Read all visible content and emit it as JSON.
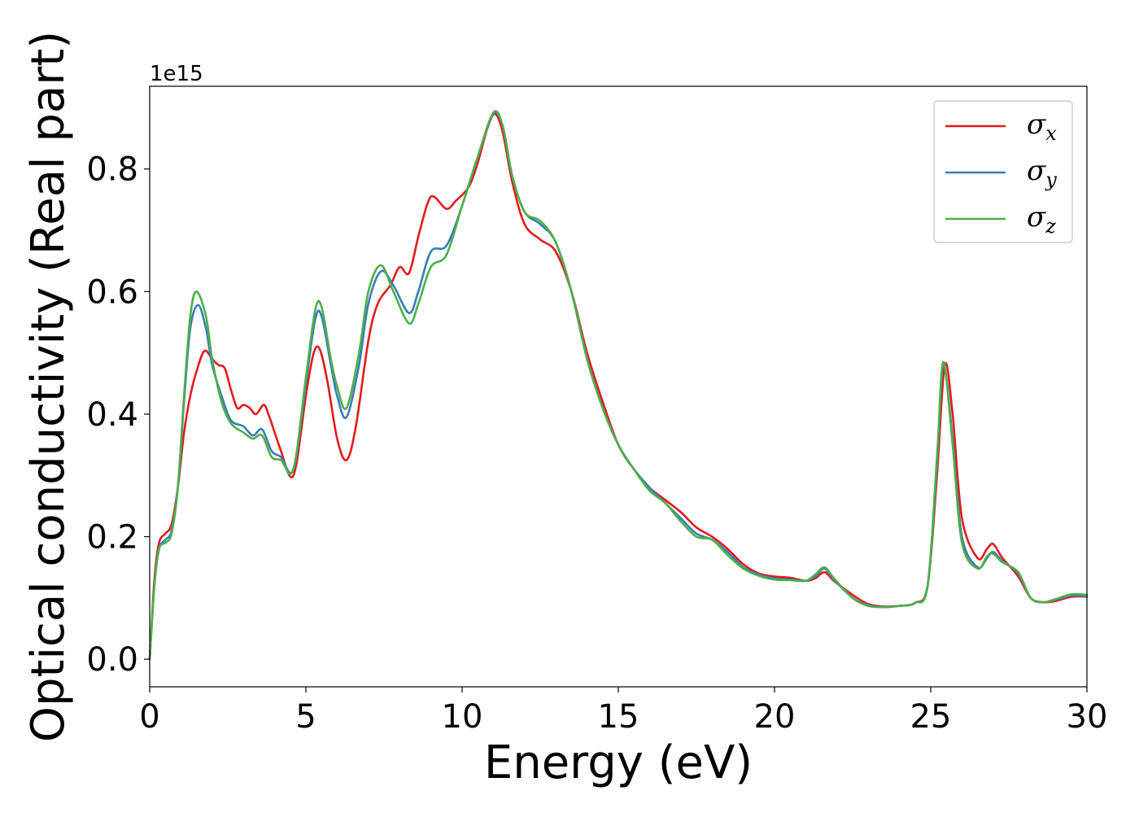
{
  "chart_data": {
    "type": "line",
    "title": "",
    "xlabel": "Energy (eV)",
    "ylabel": "Optical conductivity (Real part)",
    "y_offset_text": "1e15",
    "y_multiplier": 1000000000000000.0,
    "xlim": [
      0,
      30
    ],
    "ylim": [
      -0.045,
      0.935
    ],
    "x_ticks": [
      0,
      5,
      10,
      15,
      20,
      25,
      30
    ],
    "x_tick_labels": [
      "0",
      "5",
      "10",
      "15",
      "20",
      "25",
      "30"
    ],
    "y_ticks": [
      0.0,
      0.2,
      0.4,
      0.6,
      0.8
    ],
    "y_tick_labels": [
      "0.0",
      "0.2",
      "0.4",
      "0.6",
      "0.8"
    ],
    "grid": false,
    "legend": {
      "placement": "top-right",
      "entries": [
        {
          "symbol": "σ",
          "subscript": "x",
          "color": "#e41a1c"
        },
        {
          "symbol": "σ",
          "subscript": "y",
          "color": "#377eb8"
        },
        {
          "symbol": "σ",
          "subscript": "z",
          "color": "#4daf4a"
        }
      ]
    },
    "series": [
      {
        "legend_index": 0,
        "color": "#e41a1c",
        "points": [
          [
            0,
            0.0
          ],
          [
            0.15,
            0.13
          ],
          [
            0.3,
            0.19
          ],
          [
            0.5,
            0.205
          ],
          [
            0.7,
            0.22
          ],
          [
            0.9,
            0.28
          ],
          [
            1.1,
            0.37
          ],
          [
            1.3,
            0.43
          ],
          [
            1.5,
            0.47
          ],
          [
            1.75,
            0.503
          ],
          [
            2.0,
            0.49
          ],
          [
            2.2,
            0.48
          ],
          [
            2.4,
            0.475
          ],
          [
            2.6,
            0.44
          ],
          [
            2.8,
            0.41
          ],
          [
            3.0,
            0.415
          ],
          [
            3.2,
            0.41
          ],
          [
            3.4,
            0.4
          ],
          [
            3.65,
            0.415
          ],
          [
            3.8,
            0.4
          ],
          [
            4.0,
            0.37
          ],
          [
            4.2,
            0.34
          ],
          [
            4.5,
            0.298
          ],
          [
            4.7,
            0.32
          ],
          [
            5.0,
            0.43
          ],
          [
            5.25,
            0.5
          ],
          [
            5.45,
            0.505
          ],
          [
            5.7,
            0.45
          ],
          [
            6.0,
            0.36
          ],
          [
            6.3,
            0.325
          ],
          [
            6.6,
            0.38
          ],
          [
            7.0,
            0.52
          ],
          [
            7.3,
            0.58
          ],
          [
            7.7,
            0.61
          ],
          [
            8.0,
            0.64
          ],
          [
            8.3,
            0.63
          ],
          [
            8.6,
            0.69
          ],
          [
            8.9,
            0.745
          ],
          [
            9.1,
            0.755
          ],
          [
            9.5,
            0.735
          ],
          [
            9.8,
            0.748
          ],
          [
            10.2,
            0.77
          ],
          [
            10.5,
            0.81
          ],
          [
            10.8,
            0.865
          ],
          [
            11.05,
            0.89
          ],
          [
            11.3,
            0.86
          ],
          [
            11.6,
            0.78
          ],
          [
            12.0,
            0.71
          ],
          [
            12.5,
            0.685
          ],
          [
            13.0,
            0.665
          ],
          [
            13.5,
            0.6
          ],
          [
            14.0,
            0.5
          ],
          [
            14.5,
            0.42
          ],
          [
            15.0,
            0.35
          ],
          [
            15.5,
            0.31
          ],
          [
            16.0,
            0.28
          ],
          [
            16.5,
            0.26
          ],
          [
            17.0,
            0.24
          ],
          [
            17.5,
            0.215
          ],
          [
            18.0,
            0.2
          ],
          [
            18.5,
            0.18
          ],
          [
            19.0,
            0.155
          ],
          [
            19.5,
            0.14
          ],
          [
            20.0,
            0.135
          ],
          [
            20.5,
            0.133
          ],
          [
            21.0,
            0.128
          ],
          [
            21.3,
            0.132
          ],
          [
            21.6,
            0.142
          ],
          [
            21.9,
            0.128
          ],
          [
            22.5,
            0.105
          ],
          [
            23.0,
            0.09
          ],
          [
            23.5,
            0.086
          ],
          [
            24.0,
            0.087
          ],
          [
            24.5,
            0.092
          ],
          [
            24.9,
            0.12
          ],
          [
            25.2,
            0.3
          ],
          [
            25.45,
            0.48
          ],
          [
            25.7,
            0.4
          ],
          [
            26.0,
            0.23
          ],
          [
            26.5,
            0.165
          ],
          [
            26.8,
            0.18
          ],
          [
            27.0,
            0.188
          ],
          [
            27.3,
            0.165
          ],
          [
            27.8,
            0.135
          ],
          [
            28.2,
            0.1
          ],
          [
            28.6,
            0.093
          ],
          [
            29.0,
            0.095
          ],
          [
            29.5,
            0.102
          ],
          [
            30.0,
            0.102
          ]
        ]
      },
      {
        "legend_index": 1,
        "color": "#377eb8",
        "points": [
          [
            0,
            0.0
          ],
          [
            0.15,
            0.12
          ],
          [
            0.3,
            0.18
          ],
          [
            0.5,
            0.195
          ],
          [
            0.7,
            0.21
          ],
          [
            0.9,
            0.28
          ],
          [
            1.1,
            0.42
          ],
          [
            1.3,
            0.54
          ],
          [
            1.55,
            0.578
          ],
          [
            1.8,
            0.54
          ],
          [
            2.0,
            0.48
          ],
          [
            2.3,
            0.43
          ],
          [
            2.6,
            0.39
          ],
          [
            3.0,
            0.38
          ],
          [
            3.3,
            0.365
          ],
          [
            3.6,
            0.375
          ],
          [
            3.9,
            0.34
          ],
          [
            4.2,
            0.33
          ],
          [
            4.6,
            0.31
          ],
          [
            5.0,
            0.45
          ],
          [
            5.3,
            0.555
          ],
          [
            5.5,
            0.56
          ],
          [
            5.8,
            0.48
          ],
          [
            6.0,
            0.43
          ],
          [
            6.3,
            0.395
          ],
          [
            6.7,
            0.48
          ],
          [
            7.0,
            0.58
          ],
          [
            7.4,
            0.633
          ],
          [
            7.8,
            0.61
          ],
          [
            8.3,
            0.565
          ],
          [
            8.6,
            0.6
          ],
          [
            9.0,
            0.665
          ],
          [
            9.5,
            0.675
          ],
          [
            10.0,
            0.74
          ],
          [
            10.5,
            0.82
          ],
          [
            11.0,
            0.89
          ],
          [
            11.3,
            0.87
          ],
          [
            11.6,
            0.79
          ],
          [
            12.0,
            0.73
          ],
          [
            12.5,
            0.71
          ],
          [
            13.0,
            0.68
          ],
          [
            13.5,
            0.6
          ],
          [
            14.0,
            0.49
          ],
          [
            14.5,
            0.41
          ],
          [
            15.0,
            0.35
          ],
          [
            15.5,
            0.31
          ],
          [
            16.0,
            0.28
          ],
          [
            16.5,
            0.255
          ],
          [
            17.0,
            0.23
          ],
          [
            17.5,
            0.205
          ],
          [
            18.0,
            0.195
          ],
          [
            18.5,
            0.175
          ],
          [
            19.0,
            0.15
          ],
          [
            19.5,
            0.138
          ],
          [
            20.0,
            0.132
          ],
          [
            20.5,
            0.13
          ],
          [
            21.0,
            0.128
          ],
          [
            21.3,
            0.135
          ],
          [
            21.6,
            0.148
          ],
          [
            21.9,
            0.13
          ],
          [
            22.5,
            0.1
          ],
          [
            23.0,
            0.088
          ],
          [
            23.5,
            0.085
          ],
          [
            24.0,
            0.087
          ],
          [
            24.5,
            0.092
          ],
          [
            24.9,
            0.12
          ],
          [
            25.2,
            0.32
          ],
          [
            25.4,
            0.48
          ],
          [
            25.7,
            0.36
          ],
          [
            26.0,
            0.2
          ],
          [
            26.5,
            0.15
          ],
          [
            26.8,
            0.165
          ],
          [
            27.0,
            0.175
          ],
          [
            27.3,
            0.16
          ],
          [
            27.8,
            0.14
          ],
          [
            28.2,
            0.1
          ],
          [
            28.6,
            0.093
          ],
          [
            29.0,
            0.097
          ],
          [
            29.5,
            0.104
          ],
          [
            30.0,
            0.102
          ]
        ]
      },
      {
        "legend_index": 2,
        "color": "#4daf4a",
        "points": [
          [
            0,
            0.0
          ],
          [
            0.15,
            0.12
          ],
          [
            0.3,
            0.18
          ],
          [
            0.5,
            0.19
          ],
          [
            0.7,
            0.205
          ],
          [
            0.9,
            0.28
          ],
          [
            1.1,
            0.43
          ],
          [
            1.3,
            0.56
          ],
          [
            1.5,
            0.6
          ],
          [
            1.8,
            0.56
          ],
          [
            2.0,
            0.49
          ],
          [
            2.3,
            0.42
          ],
          [
            2.6,
            0.385
          ],
          [
            3.0,
            0.37
          ],
          [
            3.3,
            0.36
          ],
          [
            3.6,
            0.365
          ],
          [
            3.9,
            0.33
          ],
          [
            4.2,
            0.325
          ],
          [
            4.6,
            0.31
          ],
          [
            5.0,
            0.46
          ],
          [
            5.3,
            0.57
          ],
          [
            5.5,
            0.575
          ],
          [
            5.8,
            0.49
          ],
          [
            6.0,
            0.445
          ],
          [
            6.3,
            0.41
          ],
          [
            6.7,
            0.5
          ],
          [
            7.0,
            0.6
          ],
          [
            7.4,
            0.643
          ],
          [
            7.8,
            0.6
          ],
          [
            8.3,
            0.548
          ],
          [
            8.6,
            0.58
          ],
          [
            9.0,
            0.64
          ],
          [
            9.5,
            0.66
          ],
          [
            10.0,
            0.74
          ],
          [
            10.5,
            0.82
          ],
          [
            11.0,
            0.892
          ],
          [
            11.3,
            0.87
          ],
          [
            11.6,
            0.79
          ],
          [
            12.0,
            0.73
          ],
          [
            12.5,
            0.715
          ],
          [
            13.0,
            0.68
          ],
          [
            13.5,
            0.6
          ],
          [
            14.0,
            0.49
          ],
          [
            14.5,
            0.41
          ],
          [
            15.0,
            0.35
          ],
          [
            15.5,
            0.31
          ],
          [
            16.0,
            0.275
          ],
          [
            16.5,
            0.255
          ],
          [
            17.0,
            0.225
          ],
          [
            17.5,
            0.2
          ],
          [
            18.0,
            0.195
          ],
          [
            18.5,
            0.17
          ],
          [
            19.0,
            0.148
          ],
          [
            19.5,
            0.136
          ],
          [
            20.0,
            0.13
          ],
          [
            20.5,
            0.129
          ],
          [
            21.0,
            0.128
          ],
          [
            21.3,
            0.138
          ],
          [
            21.6,
            0.15
          ],
          [
            21.9,
            0.132
          ],
          [
            22.5,
            0.1
          ],
          [
            23.0,
            0.087
          ],
          [
            23.5,
            0.085
          ],
          [
            24.0,
            0.087
          ],
          [
            24.5,
            0.092
          ],
          [
            24.9,
            0.12
          ],
          [
            25.2,
            0.33
          ],
          [
            25.4,
            0.485
          ],
          [
            25.7,
            0.35
          ],
          [
            26.0,
            0.19
          ],
          [
            26.5,
            0.148
          ],
          [
            26.8,
            0.168
          ],
          [
            27.0,
            0.172
          ],
          [
            27.3,
            0.158
          ],
          [
            27.8,
            0.142
          ],
          [
            28.2,
            0.1
          ],
          [
            28.6,
            0.093
          ],
          [
            29.0,
            0.098
          ],
          [
            29.5,
            0.106
          ],
          [
            30.0,
            0.105
          ]
        ]
      }
    ]
  }
}
